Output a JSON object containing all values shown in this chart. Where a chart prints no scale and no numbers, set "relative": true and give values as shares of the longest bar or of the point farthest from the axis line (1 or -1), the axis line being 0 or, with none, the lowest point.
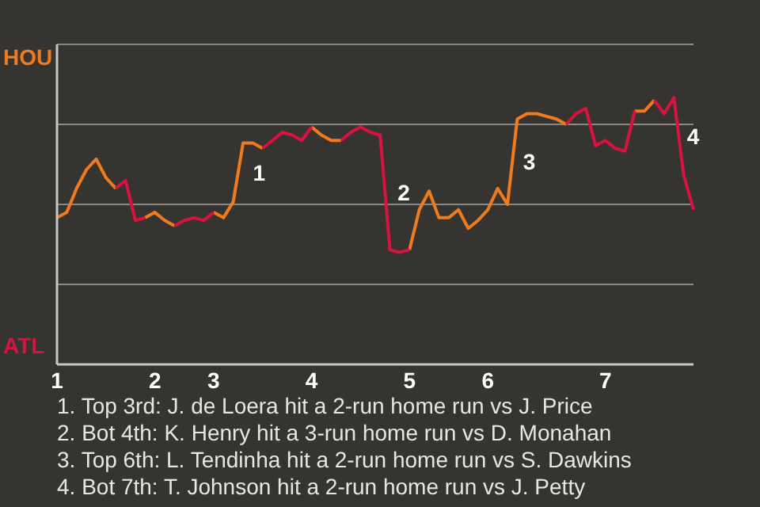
{
  "chart_data": {
    "type": "line",
    "relative": true,
    "categories": [
      "1",
      null,
      null,
      null,
      null,
      null,
      null,
      null,
      null,
      null,
      "2",
      null,
      null,
      null,
      null,
      null,
      "3",
      null,
      null,
      null,
      null,
      null,
      null,
      null,
      null,
      null,
      "4",
      null,
      null,
      null,
      null,
      null,
      null,
      null,
      null,
      null,
      "5",
      null,
      null,
      null,
      null,
      null,
      null,
      null,
      "6",
      null,
      null,
      null,
      null,
      null,
      null,
      null,
      null,
      null,
      null,
      null,
      "7",
      null,
      null,
      null,
      null,
      null,
      null,
      null,
      null,
      null
    ],
    "series": [
      {
        "color": "#f07a1e",
        "values": [
          0.55,
          0.57,
          0.66,
          0.73,
          0.77,
          0.7,
          0.66,
          null,
          null,
          0.55,
          0.57,
          0.54,
          0.52,
          null,
          null,
          null,
          0.57,
          0.55,
          0.61,
          0.83,
          0.83,
          0.81,
          null,
          null,
          null,
          null,
          0.89,
          0.86,
          0.84,
          0.84,
          null,
          null,
          null,
          null,
          null,
          null,
          0.43,
          0.58,
          0.65,
          0.55,
          0.55,
          0.58,
          0.51,
          0.54,
          0.58,
          0.66,
          0.6,
          0.92,
          0.94,
          0.94,
          0.93,
          0.92,
          0.9,
          null,
          null,
          null,
          null,
          null,
          null,
          0.95,
          0.95,
          0.99,
          null,
          null,
          null,
          null
        ]
      },
      {
        "color": "#d9123f",
        "values": [
          null,
          null,
          null,
          null,
          null,
          null,
          0.66,
          0.69,
          0.54,
          0.55,
          null,
          null,
          0.52,
          0.54,
          0.55,
          0.54,
          0.57,
          null,
          null,
          null,
          null,
          0.81,
          0.84,
          0.87,
          0.86,
          0.84,
          0.89,
          null,
          null,
          0.84,
          0.87,
          0.89,
          0.87,
          0.86,
          0.43,
          0.42,
          0.43,
          null,
          null,
          null,
          null,
          null,
          null,
          null,
          null,
          null,
          null,
          null,
          null,
          null,
          null,
          null,
          0.9,
          0.94,
          0.96,
          0.82,
          0.84,
          0.81,
          0.8,
          0.95,
          null,
          0.99,
          0.94,
          1,
          0.71,
          0.58
        ]
      }
    ],
    "grid": "y",
    "legend": false,
    "marker": "none",
    "line_style": "solid",
    "annotations": [
      "1",
      "2",
      "3",
      "4",
      "HOU",
      "ATL",
      "1. Top 3rd: J. de Loera hit a 2-run home run vs J. Price",
      "2. Bot 4th: K. Henry hit a 3-run home run vs D. Monahan",
      "3. Top 6th: L. Tendinha hit a 2-run home run vs S. Dawkins",
      "4. Bot 7th: T. Johnson hit a 2-run home run vs J. Petty"
    ]
  }
}
